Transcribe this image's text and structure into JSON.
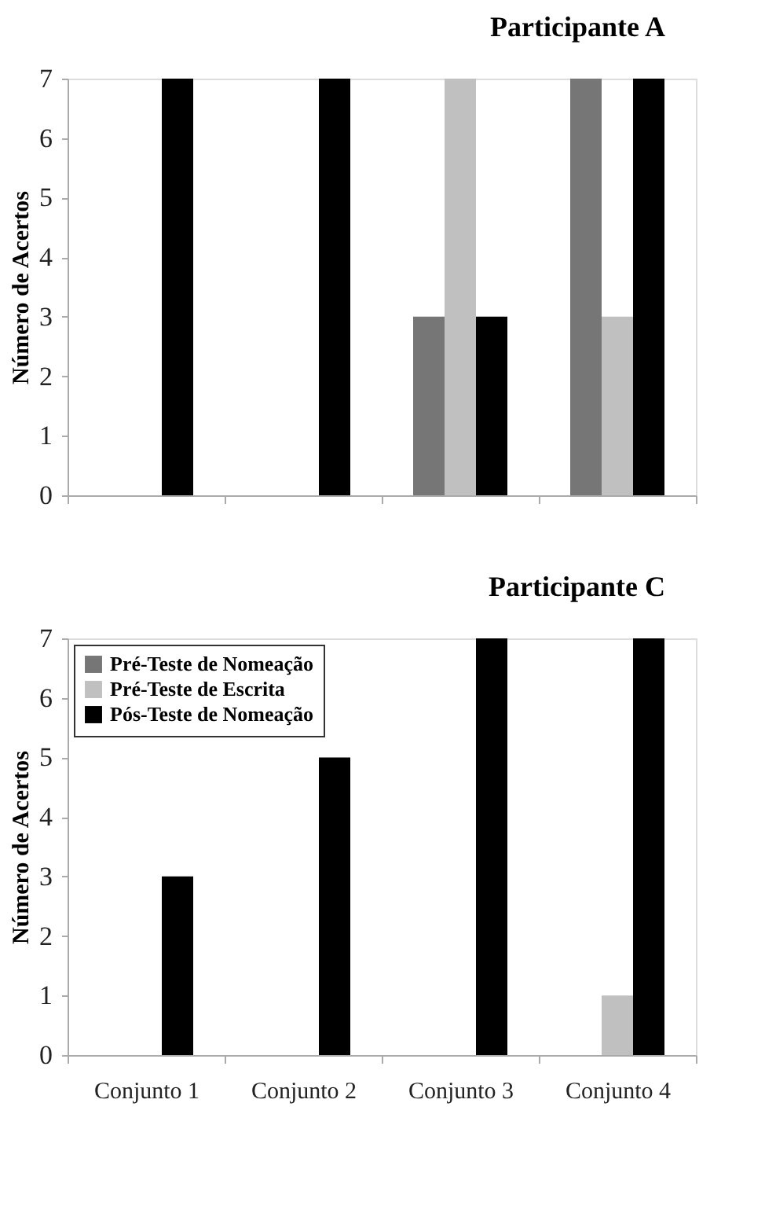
{
  "chart_data": [
    {
      "type": "bar",
      "title": "Participante A",
      "ylabel": "Número de Acertos",
      "categories": [
        null,
        null,
        null,
        null
      ],
      "series": [
        {
          "color": "#767676",
          "values": [
            0,
            0,
            3,
            7
          ]
        },
        {
          "color": "#c0c0c0",
          "values": [
            0,
            0,
            7,
            3
          ]
        },
        {
          "color": "#000000",
          "values": [
            7,
            7,
            3,
            7
          ]
        }
      ],
      "ylim": [
        0,
        7
      ],
      "yticks": [
        0,
        1,
        2,
        3,
        4,
        5,
        6,
        7
      ],
      "grid": false,
      "legend": false
    },
    {
      "type": "bar",
      "title": "Participante C",
      "ylabel": "Número de Acertos",
      "categories": [
        "Conjunto 1",
        "Conjunto 2",
        "Conjunto 3",
        "Conjunto 4"
      ],
      "series": [
        {
          "name": "Pré-Teste de Nomeação",
          "color": "#767676",
          "values": [
            0,
            0,
            0,
            0
          ]
        },
        {
          "name": "Pré-Teste de Escrita",
          "color": "#c0c0c0",
          "values": [
            0,
            0,
            0,
            1
          ]
        },
        {
          "name": "Pós-Teste de Nomeação",
          "color": "#000000",
          "values": [
            3,
            5,
            7,
            7
          ]
        }
      ],
      "ylim": [
        0,
        7
      ],
      "yticks": [
        0,
        1,
        2,
        3,
        4,
        5,
        6,
        7
      ],
      "grid": false,
      "legend": "top left"
    }
  ]
}
